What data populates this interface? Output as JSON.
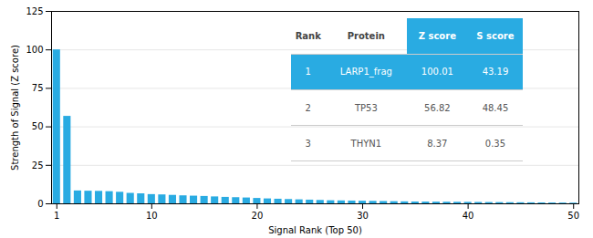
{
  "chart_data": {
    "type": "bar",
    "x": [
      1,
      2,
      3,
      4,
      5,
      6,
      7,
      8,
      9,
      10,
      11,
      12,
      13,
      14,
      15,
      16,
      17,
      18,
      19,
      20,
      21,
      22,
      23,
      24,
      25,
      26,
      27,
      28,
      29,
      30,
      31,
      32,
      33,
      34,
      35,
      36,
      37,
      38,
      39,
      40,
      41,
      42,
      43,
      44,
      45,
      46,
      47,
      48,
      49,
      50
    ],
    "values": [
      100.01,
      56.82,
      8.37,
      8.2,
      8.1,
      7.9,
      7.5,
      6.8,
      6.5,
      6.0,
      5.8,
      5.5,
      5.2,
      5.0,
      4.8,
      4.5,
      4.2,
      4.0,
      3.8,
      3.5,
      3.2,
      3.0,
      2.8,
      2.6,
      2.4,
      2.2,
      2.0,
      1.9,
      1.8,
      1.7,
      1.6,
      1.5,
      1.4,
      1.3,
      1.2,
      1.15,
      1.1,
      1.05,
      1.0,
      0.95,
      0.9,
      0.85,
      0.8,
      0.75,
      0.7,
      0.65,
      0.6,
      0.55,
      0.5,
      0.45
    ],
    "color": "#29ABE2",
    "xlabel": "Signal Rank (Top 50)",
    "ylabel": "Strength of Signal (Z score)",
    "xlim": [
      0.5,
      50.5
    ],
    "xticks": [
      1,
      10,
      20,
      30,
      40,
      50
    ],
    "ylim": [
      0,
      125
    ],
    "yticks": [
      0,
      25,
      50,
      75,
      100,
      125
    ],
    "grid": true,
    "table": {
      "columns": [
        "Rank",
        "Protein",
        "Z score",
        "S score"
      ],
      "rows": [
        [
          "1",
          "LARP1_frag",
          "100.01",
          "43.19"
        ],
        [
          "2",
          "TP53",
          "56.82",
          "48.45"
        ],
        [
          "3",
          "THYN1",
          "8.37",
          "0.35"
        ]
      ]
    }
  }
}
